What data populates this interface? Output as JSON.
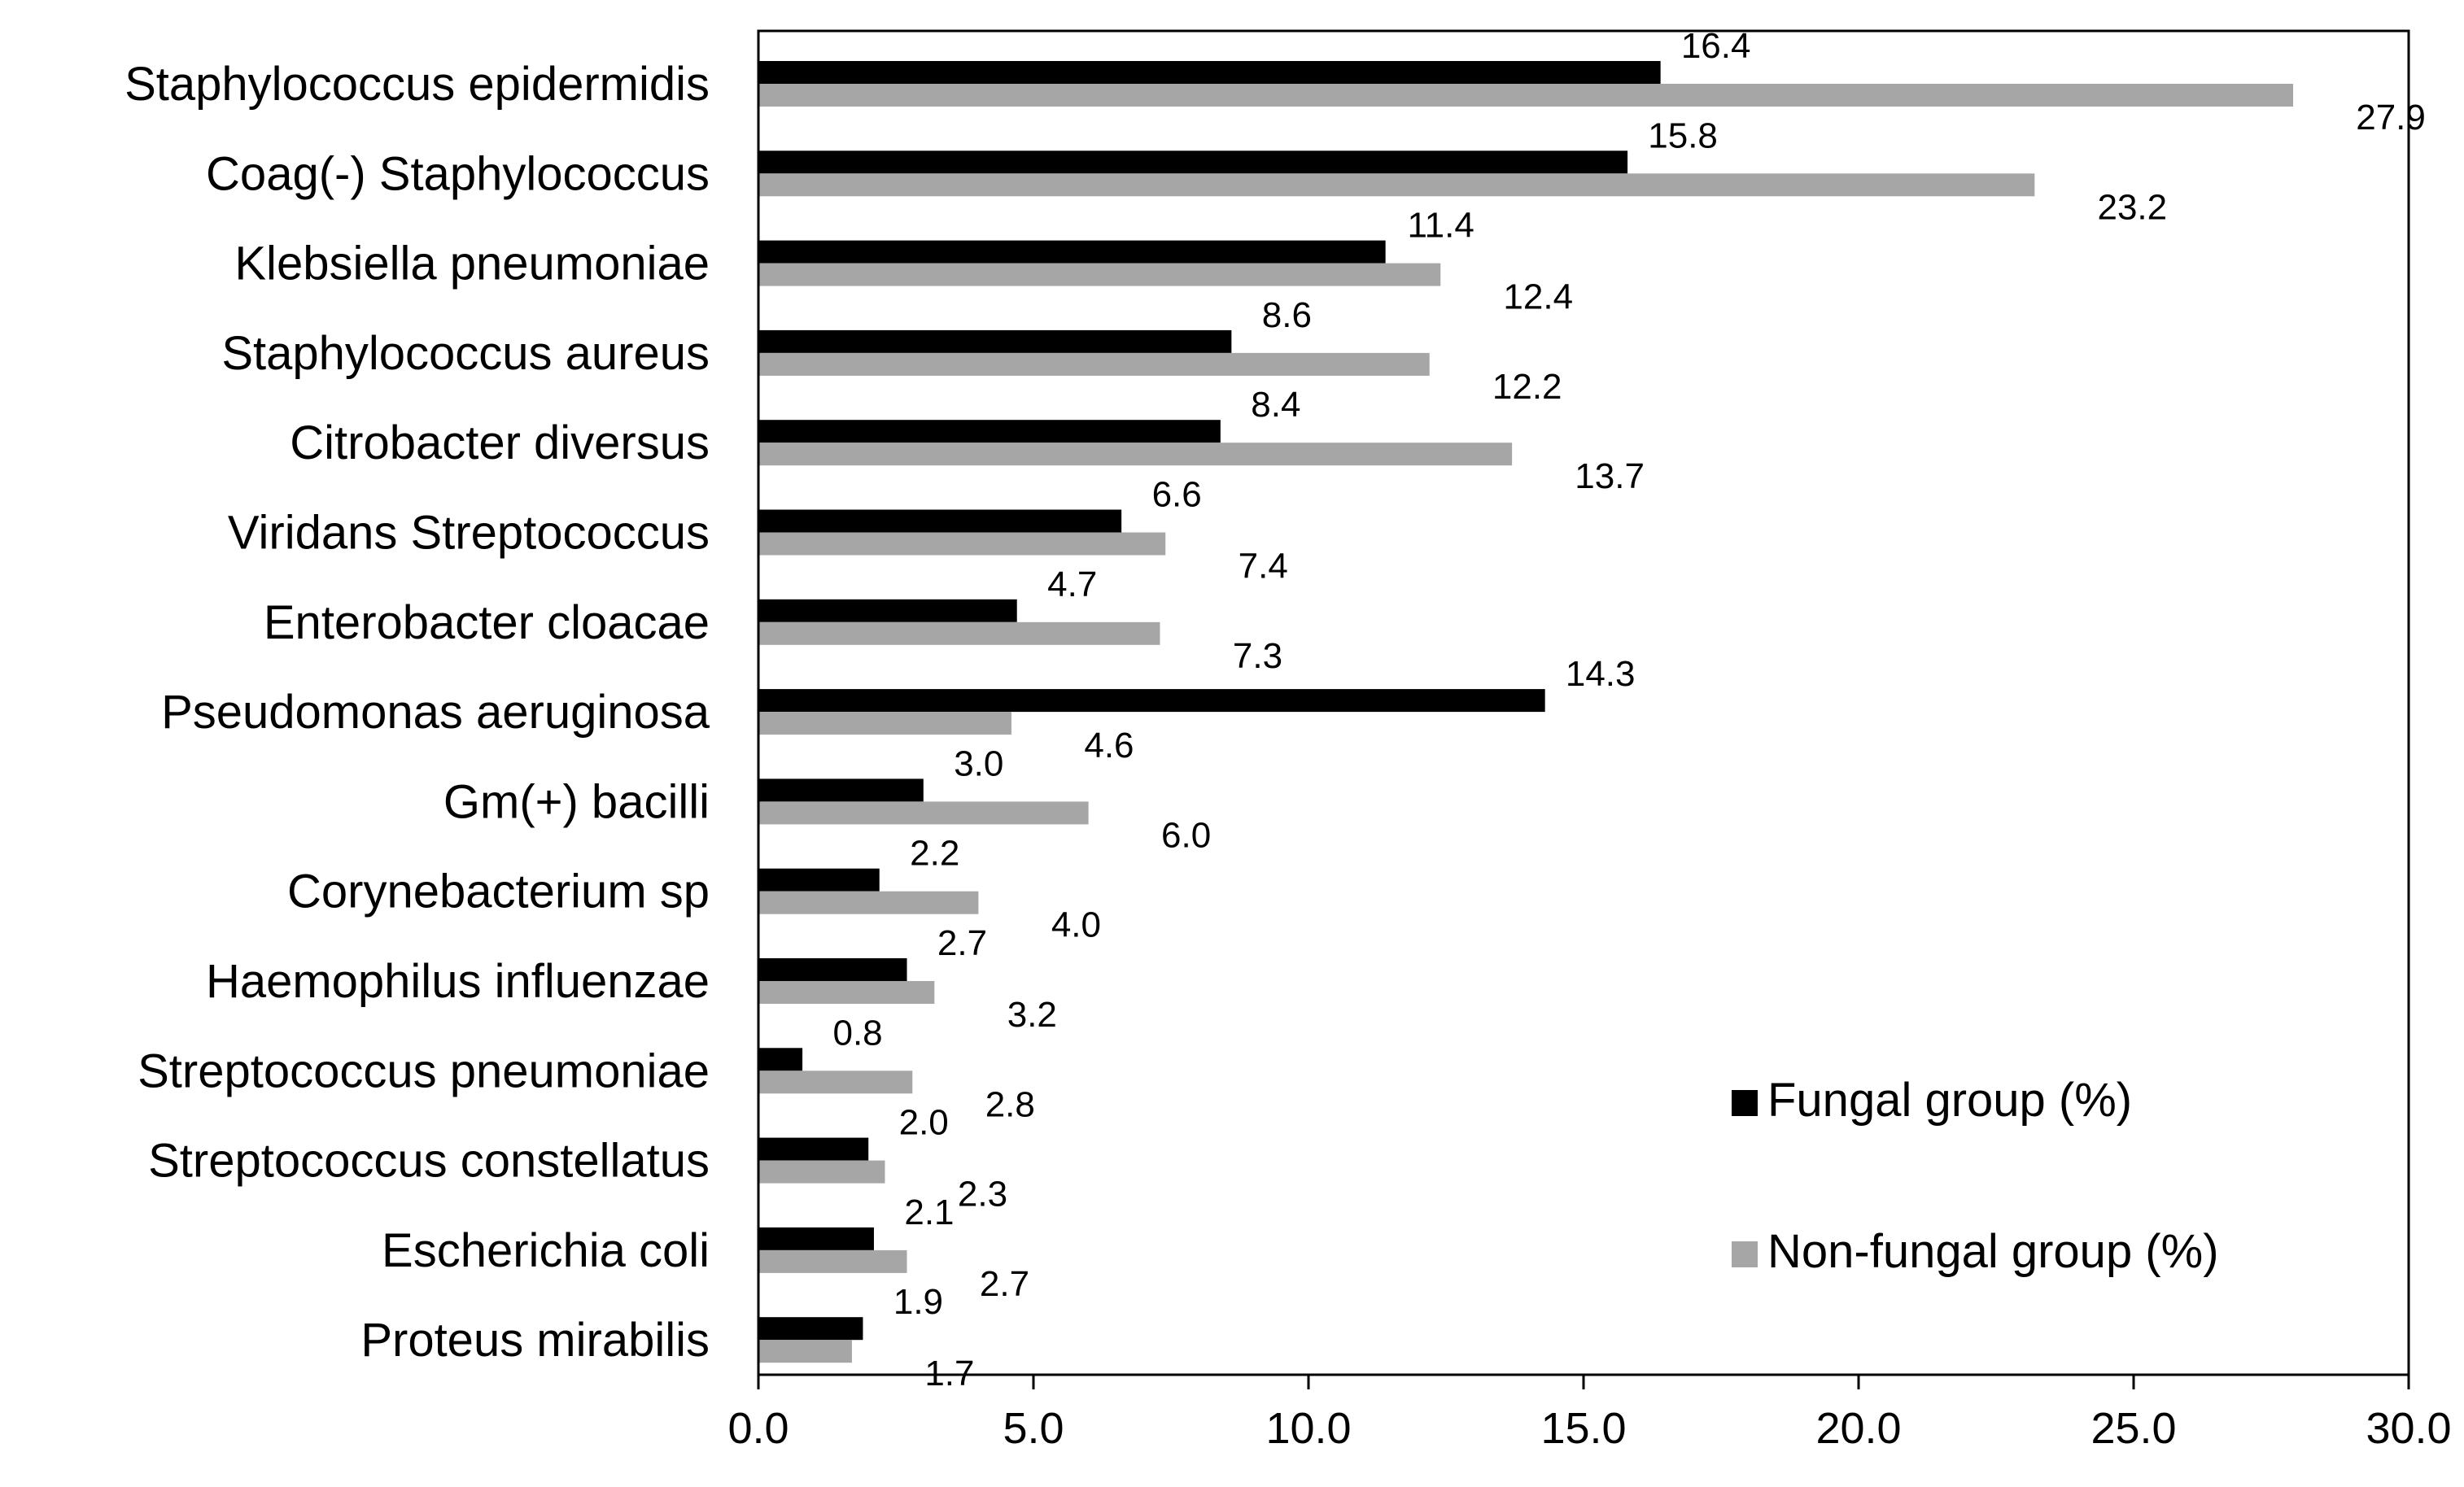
{
  "chart_data": {
    "type": "bar",
    "orientation": "horizontal",
    "categories": [
      "Staphylococcus epidermidis",
      "Coag(-) Staphylococcus",
      "Klebsiella pneumoniae",
      "Staphylococcus aureus",
      "Citrobacter diversus",
      "Viridans Streptococcus",
      "Enterobacter cloacae",
      "Pseudomonas aeruginosa",
      "Gm(+) bacilli",
      "Corynebacterium sp",
      "Haemophilus influenzae",
      "Streptococcus pneumoniae",
      "Streptococcus constellatus",
      "Escherichia coli",
      "Proteus mirabilis"
    ],
    "series": [
      {
        "name": "Fungal group (%)",
        "color": "#000000",
        "values": [
          16.4,
          15.8,
          11.4,
          8.6,
          8.4,
          6.6,
          4.7,
          14.3,
          3.0,
          2.2,
          2.7,
          0.8,
          2.0,
          2.1,
          1.9
        ],
        "labels": [
          "16.4",
          "15.8",
          "11.4",
          "8.6",
          "8.4",
          "6.6",
          "4.7",
          "14.3",
          "3.0",
          "2.2",
          "2.7",
          "0.8",
          "2.0",
          "2.1",
          "1.9"
        ]
      },
      {
        "name": "Non-fungal group (%)",
        "color": "#a6a6a6",
        "values": [
          27.9,
          23.2,
          12.4,
          12.2,
          13.7,
          7.4,
          7.3,
          4.6,
          6.0,
          4.0,
          3.2,
          2.8,
          2.3,
          2.7,
          1.7
        ],
        "labels": [
          "27.9",
          "23.2",
          "12.4",
          "12.2",
          "13.7",
          "7.4",
          "7.3",
          "4.6",
          "6.0",
          "4.0",
          "3.2",
          "2.8",
          "2.3",
          "2.7",
          "1.7"
        ]
      }
    ],
    "xlim": [
      0,
      30
    ],
    "xticks": [
      0,
      5,
      10,
      15,
      20,
      25,
      30
    ],
    "xtick_labels": [
      "0.0",
      "5.0",
      "10.0",
      "15.0",
      "20.0",
      "25.0",
      "30.0"
    ],
    "title": "",
    "xlabel": "",
    "ylabel": "",
    "grid": false,
    "legend_position": "bottom-right"
  }
}
